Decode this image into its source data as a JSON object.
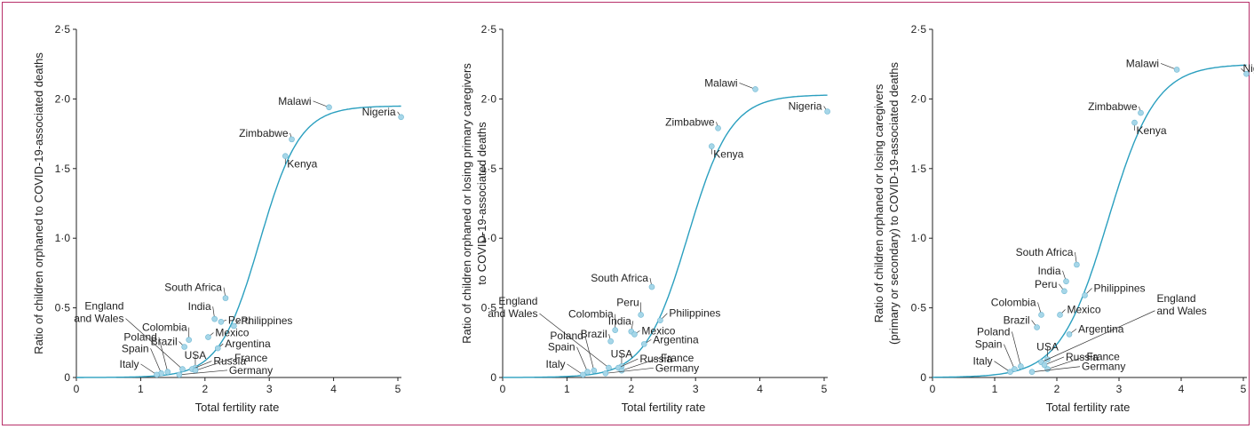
{
  "chart_data": [
    {
      "type": "scatter",
      "xlabel": "Total fertility rate",
      "ylabel": "Ratio of children orphaned to COVID-19-associated deaths",
      "xlim": [
        0,
        5
      ],
      "ylim": [
        0,
        2.5
      ],
      "xticks": [
        "0",
        "1",
        "2",
        "3",
        "4",
        "5"
      ],
      "yticks": [
        "0",
        "0·5",
        "1·0",
        "1·5",
        "2·0",
        "2·5"
      ],
      "curve": {
        "plateau": 1.95,
        "midpoint": 2.85,
        "steepness": 3.2
      },
      "points": [
        {
          "label": "Malawi",
          "x": 3.93,
          "y": 1.94
        },
        {
          "label": "Nigeria",
          "x": 5.05,
          "y": 1.87
        },
        {
          "label": "Zimbabwe",
          "x": 3.35,
          "y": 1.71
        },
        {
          "label": "Kenya",
          "x": 3.25,
          "y": 1.59
        },
        {
          "label": "South Africa",
          "x": 2.32,
          "y": 0.57
        },
        {
          "label": "India",
          "x": 2.15,
          "y": 0.42
        },
        {
          "label": "Peru",
          "x": 2.25,
          "y": 0.4
        },
        {
          "label": "Philippines",
          "x": 2.45,
          "y": 0.37
        },
        {
          "label": "Colombia",
          "x": 1.75,
          "y": 0.27
        },
        {
          "label": "Mexico",
          "x": 2.05,
          "y": 0.29
        },
        {
          "label": "Brazil",
          "x": 1.68,
          "y": 0.22
        },
        {
          "label": "Argentina",
          "x": 2.2,
          "y": 0.21
        },
        {
          "label": "USA",
          "x": 1.85,
          "y": 0.07
        },
        {
          "label": "England and Wales",
          "x": 1.65,
          "y": 0.06
        },
        {
          "label": "Poland",
          "x": 1.42,
          "y": 0.04
        },
        {
          "label": "Spain",
          "x": 1.32,
          "y": 0.03
        },
        {
          "label": "Italy",
          "x": 1.25,
          "y": 0.02
        },
        {
          "label": "Russia",
          "x": 1.8,
          "y": 0.06
        },
        {
          "label": "France",
          "x": 1.85,
          "y": 0.05
        },
        {
          "label": "Germany",
          "x": 1.6,
          "y": 0.02
        }
      ]
    },
    {
      "type": "scatter",
      "xlabel": "Total fertility rate",
      "ylabel": "Ratio of children orphaned or losing primary caregivers to COVID-19-associated deaths",
      "xlim": [
        0,
        5
      ],
      "ylim": [
        0,
        2.5
      ],
      "xticks": [
        "0",
        "1",
        "2",
        "3",
        "4",
        "5"
      ],
      "yticks": [
        "0",
        "0·5",
        "1·0",
        "1·5",
        "2·0",
        "2·5"
      ],
      "curve": {
        "plateau": 2.03,
        "midpoint": 2.88,
        "steepness": 3.0
      },
      "points": [
        {
          "label": "Malawi",
          "x": 3.93,
          "y": 2.07
        },
        {
          "label": "Nigeria",
          "x": 5.05,
          "y": 1.91
        },
        {
          "label": "Zimbabwe",
          "x": 3.35,
          "y": 1.79
        },
        {
          "label": "Kenya",
          "x": 3.25,
          "y": 1.66
        },
        {
          "label": "South Africa",
          "x": 2.32,
          "y": 0.65
        },
        {
          "label": "Peru",
          "x": 2.15,
          "y": 0.45
        },
        {
          "label": "Philippines",
          "x": 2.45,
          "y": 0.41
        },
        {
          "label": "Colombia",
          "x": 1.75,
          "y": 0.34
        },
        {
          "label": "India",
          "x": 2.0,
          "y": 0.33
        },
        {
          "label": "Mexico",
          "x": 2.05,
          "y": 0.31
        },
        {
          "label": "Brazil",
          "x": 1.68,
          "y": 0.26
        },
        {
          "label": "Argentina",
          "x": 2.2,
          "y": 0.24
        },
        {
          "label": "USA",
          "x": 1.85,
          "y": 0.08
        },
        {
          "label": "England and Wales",
          "x": 1.65,
          "y": 0.07
        },
        {
          "label": "Poland",
          "x": 1.42,
          "y": 0.05
        },
        {
          "label": "Spain",
          "x": 1.32,
          "y": 0.04
        },
        {
          "label": "Italy",
          "x": 1.25,
          "y": 0.02
        },
        {
          "label": "Russia",
          "x": 1.8,
          "y": 0.07
        },
        {
          "label": "France",
          "x": 1.85,
          "y": 0.05
        },
        {
          "label": "Germany",
          "x": 1.6,
          "y": 0.03
        }
      ]
    },
    {
      "type": "scatter",
      "xlabel": "Total fertility rate",
      "ylabel": "Ratio of children orphaned or losing caregivers (primary or secondary) to COVID-19-associated deaths",
      "xlim": [
        0,
        5
      ],
      "ylim": [
        0,
        2.5
      ],
      "xticks": [
        "0",
        "1",
        "2",
        "3",
        "4",
        "5"
      ],
      "yticks": [
        "0",
        "0·5",
        "1·0",
        "1·5",
        "2·0",
        "2·5"
      ],
      "curve": {
        "plateau": 2.25,
        "midpoint": 2.82,
        "steepness": 2.6
      },
      "points": [
        {
          "label": "Malawi",
          "x": 3.93,
          "y": 2.21
        },
        {
          "label": "Nigeria",
          "x": 5.05,
          "y": 2.18
        },
        {
          "label": "Zimbabwe",
          "x": 3.35,
          "y": 1.9
        },
        {
          "label": "Kenya",
          "x": 3.25,
          "y": 1.83
        },
        {
          "label": "South Africa",
          "x": 2.32,
          "y": 0.81
        },
        {
          "label": "India",
          "x": 2.15,
          "y": 0.69
        },
        {
          "label": "Peru",
          "x": 2.12,
          "y": 0.62
        },
        {
          "label": "Philippines",
          "x": 2.45,
          "y": 0.59
        },
        {
          "label": "Colombia",
          "x": 1.75,
          "y": 0.45
        },
        {
          "label": "Mexico",
          "x": 2.05,
          "y": 0.45
        },
        {
          "label": "Brazil",
          "x": 1.68,
          "y": 0.36
        },
        {
          "label": "Argentina",
          "x": 2.2,
          "y": 0.31
        },
        {
          "label": "USA",
          "x": 1.85,
          "y": 0.13
        },
        {
          "label": "England and Wales",
          "x": 1.75,
          "y": 0.11
        },
        {
          "label": "Poland",
          "x": 1.42,
          "y": 0.08
        },
        {
          "label": "Spain",
          "x": 1.32,
          "y": 0.06
        },
        {
          "label": "Italy",
          "x": 1.25,
          "y": 0.04
        },
        {
          "label": "Russia",
          "x": 1.8,
          "y": 0.09
        },
        {
          "label": "France",
          "x": 1.85,
          "y": 0.06
        },
        {
          "label": "Germany",
          "x": 1.6,
          "y": 0.04
        }
      ]
    }
  ],
  "colors": {
    "curve": "#2a9fbf",
    "point": "#a6d6e8",
    "point_edge": "#6fb8d3",
    "frame": "#b8306a",
    "axis": "#222222"
  }
}
